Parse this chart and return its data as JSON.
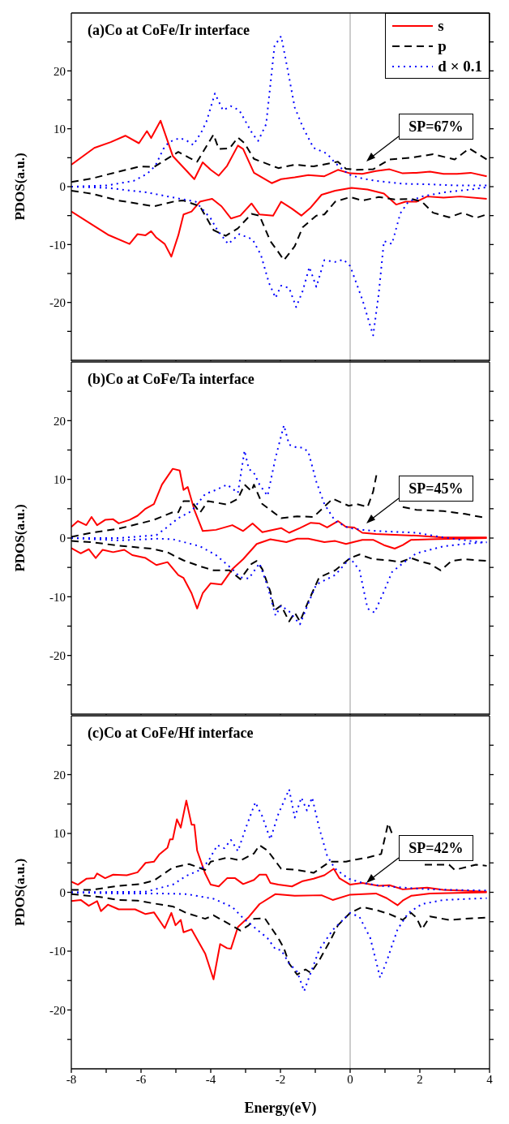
{
  "chart_data": [
    {
      "type": "line",
      "title": "(a)Co at CoFe/Ir interface",
      "ylabel": "PDOS(a.u.)",
      "xlim": [
        -8,
        4
      ],
      "ylim": [
        -30,
        30
      ],
      "xticks": [
        -8,
        {
          "value": -7,
          "label": null
        },
        -6,
        {
          "value": -5,
          "label": null
        },
        -4,
        {
          "value": -3,
          "label": null
        },
        -2,
        {
          "value": -1,
          "label": null
        },
        0,
        {
          "value": 1,
          "label": null
        },
        2,
        {
          "value": 3,
          "label": null
        },
        4
      ],
      "yticks": [
        {
          "value": -25,
          "label": null
        },
        -20,
        {
          "value": -15,
          "label": null
        },
        -10,
        {
          "value": -5,
          "label": null
        },
        0,
        {
          "value": 5,
          "label": null
        },
        10,
        {
          "value": 15,
          "label": null
        },
        20,
        {
          "value": 25,
          "label": null
        }
      ],
      "tick_labels": "y",
      "legend": "top right",
      "ref_lines": [
        {
          "axis": "x",
          "value": 0,
          "color": "#808080"
        }
      ],
      "annotations": [
        "SP=67%"
      ],
      "series": [
        {
          "name": "s",
          "color": "#ff0000",
          "line_style": "solid",
          "x": [
            -8,
            -7.34,
            -6.87,
            -6.45,
            -6.06,
            -5.83,
            -5.71,
            -5.44,
            -5.09,
            -4.47,
            -4.23,
            -4,
            -3.77,
            -3.53,
            -3.22,
            -3.07,
            -2.76,
            -2.25,
            -1.98,
            -1.59,
            -1.2,
            -0.74,
            -0.35,
            0,
            0.35,
            0.74,
            1.13,
            1.51,
            1.9,
            2.29,
            2.68,
            3.07,
            3.46,
            3.92
          ],
          "values": [
            3.8,
            6.7,
            7.7,
            8.8,
            7.5,
            9.6,
            8.4,
            11.4,
            5.3,
            1.3,
            4.2,
            2.9,
            1.9,
            3.6,
            7.1,
            6.5,
            2.4,
            0.6,
            1.3,
            1.6,
            2,
            1.8,
            2.9,
            2.3,
            2.2,
            2.7,
            3,
            2.3,
            2.4,
            2.6,
            2.2,
            2.2,
            2.4,
            1.8
          ]
        },
        {
          "color": "#ff0000",
          "line_style": "solid",
          "x": [
            -8,
            -7.42,
            -6.95,
            -6.33,
            -6.1,
            -5.87,
            -5.71,
            -5.56,
            -5.32,
            -5.13,
            -4.93,
            -4.78,
            -4.55,
            -4.31,
            -3.96,
            -3.69,
            -3.42,
            -3.15,
            -2.83,
            -2.6,
            -2.21,
            -1.98,
            -1.67,
            -1.4,
            -1.13,
            -0.82,
            -0.43,
            0.04,
            0.5,
            0.97,
            1.32,
            1.59,
            1.9,
            2.21,
            2.68,
            3.15,
            3.92
          ],
          "values": [
            -4.3,
            -6.5,
            -8.3,
            -9.9,
            -8.2,
            -8.4,
            -7.7,
            -8.8,
            -9.9,
            -12.1,
            -8.4,
            -4.8,
            -4.3,
            -2.6,
            -2.1,
            -3.4,
            -5.5,
            -5,
            -2.9,
            -4.8,
            -5,
            -2.6,
            -3.8,
            -5,
            -3.6,
            -1.4,
            -0.7,
            -0.2,
            -0.5,
            -1.2,
            -3.1,
            -2.6,
            -2.6,
            -1.7,
            -1.9,
            -1.7,
            -2.1
          ]
        },
        {
          "name": "p",
          "color": "#000000",
          "line_style": "dashed",
          "x": [
            -8,
            -7.42,
            -6.64,
            -6.02,
            -5.63,
            -4.93,
            -4.62,
            -4.39,
            -3.92,
            -3.77,
            -3.46,
            -3.22,
            -3.03,
            -2.76,
            -2.06,
            -1.59,
            -1.05,
            -0.35,
            -0.12,
            0.19,
            0.66,
            1.13,
            1.75,
            2.38,
            3,
            3.42,
            3.92
          ],
          "values": [
            0.8,
            1.4,
            2.6,
            3.5,
            3.4,
            6,
            5,
            4.3,
            9,
            6.5,
            6.6,
            8.5,
            7.5,
            4.8,
            3.2,
            3.8,
            3.5,
            4.3,
            3.1,
            2.9,
            3,
            4.7,
            5,
            5.6,
            4.7,
            6.6,
            4.7
          ]
        },
        {
          "color": "#000000",
          "line_style": "dashed",
          "x": [
            -8,
            -7.42,
            -6.64,
            -5.63,
            -5.01,
            -4.78,
            -4.31,
            -3.92,
            -3.57,
            -3.22,
            -2.83,
            -2.6,
            -2.29,
            -2.06,
            -1.9,
            -1.59,
            -1.36,
            -0.97,
            -0.74,
            -0.43,
            0,
            0.35,
            0.82,
            1.28,
            1.75,
            2.06,
            2.38,
            2.84,
            3.22,
            3.61,
            3.92
          ],
          "values": [
            -0.7,
            -1.2,
            -2.4,
            -3.4,
            -2.5,
            -2.4,
            -3.4,
            -7.5,
            -8.5,
            -7.2,
            -4.7,
            -5,
            -9.4,
            -11.3,
            -12.7,
            -10.3,
            -7,
            -5,
            -4.8,
            -2.6,
            -1.8,
            -2.4,
            -1.8,
            -2.2,
            -2.1,
            -2.6,
            -4.5,
            -5.3,
            -4.5,
            -5.4,
            -4.8
          ]
        },
        {
          "name": "d × 0.1",
          "color": "#0000ff",
          "line_style": "dotted",
          "x": [
            -8,
            -6.99,
            -6.21,
            -5.83,
            -5.59,
            -5.36,
            -5.2,
            -4.89,
            -4.7,
            -4.5,
            -4.27,
            -4.12,
            -3.88,
            -3.65,
            -3.42,
            -3.18,
            -2.8,
            -2.64,
            -2.41,
            -2.17,
            -1.98,
            -1.83,
            -1.59,
            -1.36,
            -1.05,
            -0.66,
            -0.43,
            -0.04,
            0.35,
            0.74,
            1.51,
            2.29,
            3.07,
            3.92
          ],
          "values": [
            0,
            0.2,
            1,
            2.2,
            3.6,
            6.5,
            7.7,
            8.4,
            8,
            7.2,
            9.4,
            11.3,
            16.1,
            13.2,
            13.9,
            13.2,
            9.1,
            7.9,
            10.8,
            24.3,
            26,
            21.4,
            13.7,
            10.3,
            6.7,
            5.7,
            4.1,
            2.1,
            1.4,
            1,
            0.5,
            0.4,
            0.2,
            0.2
          ]
        },
        {
          "color": "#0000ff",
          "line_style": "dotted",
          "x": [
            -8,
            -6.99,
            -5.83,
            -5.05,
            -4.43,
            -4,
            -3.81,
            -3.5,
            -3.18,
            -2.8,
            -2.56,
            -2.33,
            -2.14,
            -1.98,
            -1.75,
            -1.55,
            -1.36,
            -1.17,
            -0.97,
            -0.74,
            -0.43,
            -0.19,
            0,
            0.35,
            0.66,
            0.82,
            0.97,
            1.2,
            1.44,
            1.67,
            2.06,
            2.68,
            3.46,
            3.92
          ],
          "values": [
            0,
            -0.2,
            -1,
            -1.9,
            -2.6,
            -5.5,
            -7.5,
            -9.9,
            -8.2,
            -9.1,
            -11.8,
            -16.6,
            -19.2,
            -17.1,
            -17.5,
            -20.8,
            -18,
            -13.9,
            -17.3,
            -12.7,
            -13,
            -12.6,
            -13.7,
            -19.5,
            -25.7,
            -18.5,
            -9.4,
            -9.9,
            -4.6,
            -2.6,
            -1.7,
            -1,
            -0.5,
            -0.1
          ]
        }
      ]
    },
    {
      "type": "line",
      "title": "(b)Co at CoFe/Ta interface",
      "ylabel": "PDOS(a.u.)",
      "xlim": [
        -8,
        4
      ],
      "ylim": [
        -30,
        30
      ],
      "xticks": [
        -8,
        {
          "value": -7,
          "label": null
        },
        -6,
        {
          "value": -5,
          "label": null
        },
        -4,
        {
          "value": -3,
          "label": null
        },
        -2,
        {
          "value": -1,
          "label": null
        },
        0,
        {
          "value": 1,
          "label": null
        },
        2,
        {
          "value": 3,
          "label": null
        },
        4
      ],
      "yticks": [
        {
          "value": -25,
          "label": null
        },
        -20,
        {
          "value": -15,
          "label": null
        },
        -10,
        {
          "value": -5,
          "label": null
        },
        0,
        {
          "value": 5,
          "label": null
        },
        10,
        {
          "value": 15,
          "label": null
        },
        20,
        {
          "value": 25,
          "label": null
        }
      ],
      "tick_labels": "y",
      "ref_lines": [
        {
          "axis": "x",
          "value": 0,
          "color": "#808080"
        }
      ],
      "annotations": [
        "SP=45%"
      ],
      "series": [
        {
          "color": "#ff0000",
          "line_style": "solid",
          "x": [
            -8,
            -7.81,
            -7.57,
            -7.42,
            -7.26,
            -7.03,
            -6.8,
            -6.64,
            -6.33,
            -6.1,
            -5.87,
            -5.63,
            -5.4,
            -5.09,
            -4.89,
            -4.78,
            -4.66,
            -4.47,
            -4.23,
            -3.85,
            -3.38,
            -3.07,
            -2.8,
            -2.52,
            -1.98,
            -1.75,
            -1.44,
            -1.13,
            -0.89,
            -0.66,
            -0.35,
            -0.12,
            0.12,
            0.35,
            0.74,
            1.13,
            1.9,
            2.68,
            3.92
          ],
          "values": [
            1.9,
            2.9,
            2.2,
            3.6,
            2.2,
            3.1,
            3.2,
            2.5,
            3.1,
            3.8,
            5,
            5.8,
            9.1,
            11.8,
            11.5,
            8.2,
            8.7,
            4.8,
            1.2,
            1.4,
            2.2,
            1.2,
            2.5,
            1,
            1.7,
            0.9,
            1.7,
            2.6,
            2.5,
            1.8,
            2.9,
            1.9,
            1.8,
            0.9,
            0.7,
            0.6,
            0.4,
            0.1,
            0.1
          ]
        },
        {
          "color": "#ff0000",
          "line_style": "solid",
          "x": [
            -8,
            -7.73,
            -7.5,
            -7.3,
            -7.1,
            -6.8,
            -6.48,
            -6.25,
            -5.87,
            -5.56,
            -5.24,
            -4.93,
            -4.78,
            -4.55,
            -4.39,
            -4.23,
            -4,
            -3.69,
            -3.38,
            -3.07,
            -2.68,
            -2.29,
            -1.83,
            -1.52,
            -1.2,
            -0.74,
            -0.43,
            -0.12,
            0.35,
            0.66,
            0.97,
            1.28,
            1.51,
            1.75,
            2.29,
            3.07,
            3.92
          ],
          "values": [
            -1.7,
            -2.6,
            -1.9,
            -3.4,
            -2,
            -2.4,
            -2,
            -2.9,
            -3.4,
            -4.6,
            -4.1,
            -6.3,
            -6.8,
            -9.4,
            -12,
            -9.4,
            -7.7,
            -7.9,
            -5.3,
            -3.6,
            -1,
            -0.2,
            -0.7,
            -0.1,
            -0.1,
            -0.7,
            -0.5,
            -1,
            -0.3,
            -0.3,
            -1.2,
            -1.8,
            -1.2,
            -0.3,
            -0.2,
            -0.1,
            0
          ]
        },
        {
          "color": "#000000",
          "line_style": "dashed",
          "x": [
            -8,
            -7.42,
            -6.64,
            -6.02,
            -5.63,
            -5.09,
            -4.93,
            -4.78,
            -4.55,
            -4.31,
            -4.08,
            -3.53,
            -3.22,
            -3.03,
            -2.83,
            -2.76,
            -2.52,
            -1.98,
            -1.52,
            -1.05,
            -0.5,
            -0.04,
            0.19,
            0.5,
            0.66,
            0.78,
            0.97,
            1.13,
            1.51,
            1.9,
            2.68,
            3.3,
            3.92
          ],
          "values": [
            0.2,
            0.9,
            1.6,
            2.5,
            3.1,
            4.4,
            4.4,
            6.3,
            6.3,
            4.3,
            6.3,
            5.7,
            6.7,
            9.1,
            8,
            9.1,
            5.8,
            3.4,
            3.7,
            3.6,
            6.7,
            5.5,
            5.8,
            5.3,
            7.9,
            11.5,
            null,
            null,
            5.3,
            4.8,
            4.6,
            4.1,
            3.4
          ]
        },
        {
          "color": "#000000",
          "line_style": "dashed",
          "x": [
            -8,
            -7.42,
            -6.64,
            -5.71,
            -5.24,
            -5.09,
            -4.78,
            -4.31,
            -3.92,
            -3.46,
            -3.15,
            -2.83,
            -2.68,
            -2.52,
            -2.29,
            -2.17,
            -1.98,
            -1.75,
            -1.59,
            -1.44,
            -1.2,
            -0.89,
            -0.43,
            0,
            0.27,
            0.66,
            1.13,
            1.44,
            1.75,
            1.98,
            2.29,
            2.6,
            2.91,
            3.3,
            3.92
          ],
          "values": [
            -0.5,
            -0.7,
            -1.3,
            -1.8,
            -2.4,
            -2.9,
            -3.8,
            -4.8,
            -5.5,
            -5.5,
            -7,
            -4.4,
            -3.9,
            -5.3,
            -9.1,
            -12.3,
            -11.5,
            -14.2,
            -12.7,
            -14.2,
            -10.8,
            -6.7,
            -5.5,
            -3.4,
            -2.8,
            -3.6,
            -3.8,
            -4.1,
            -3.4,
            -3.9,
            -4.4,
            -5.5,
            -3.9,
            -3.6,
            -3.9
          ]
        },
        {
          "color": "#0000ff",
          "line_style": "dotted",
          "x": [
            -8,
            -6.64,
            -5.56,
            -5.24,
            -4.93,
            -4.55,
            -4.16,
            -3.85,
            -3.53,
            -3.22,
            -3.03,
            -2.91,
            -2.76,
            -2.6,
            -2.37,
            -2.14,
            -1.9,
            -1.75,
            -1.52,
            -1.36,
            -1.2,
            -0.97,
            -0.74,
            -0.43,
            -0.04,
            0.35,
            0.74,
            1.13,
            1.9,
            2.68,
            3.46,
            3.92
          ],
          "values": [
            0,
            0,
            0.5,
            1.9,
            3.4,
            4.6,
            7.5,
            8.2,
            9.1,
            7.7,
            14.9,
            11.8,
            11.1,
            9.1,
            7.2,
            13.7,
            19.2,
            15.9,
            15.4,
            15.4,
            14.7,
            9.6,
            5.8,
            2.9,
            1.7,
            1.4,
            1.2,
            1.1,
            0.9,
            0.1,
            -0.5,
            -0.8
          ]
        },
        {
          "color": "#0000ff",
          "line_style": "dotted",
          "x": [
            -8,
            -6.64,
            -5.48,
            -5.09,
            -4.31,
            -3.85,
            -3.38,
            -3.15,
            -2.91,
            -2.6,
            -2.37,
            -2.14,
            -1.98,
            -1.75,
            -1.44,
            -1.2,
            -0.97,
            -0.43,
            0,
            0.27,
            0.5,
            0.7,
            0.97,
            1.2,
            1.51,
            1.9,
            2.68,
            3.46,
            3.92
          ],
          "values": [
            0,
            -0.4,
            -0.1,
            -0.2,
            -1.4,
            -2.9,
            -5.3,
            -6.7,
            -6.9,
            -4.3,
            -8.2,
            -13.2,
            -11.5,
            -12.5,
            -14.7,
            -11.1,
            -7.9,
            -6.3,
            -3.4,
            -5.5,
            -12,
            -12.7,
            -9.1,
            -5.8,
            -4.3,
            -2.6,
            -1.4,
            -0.9,
            -0.7
          ]
        }
      ]
    },
    {
      "type": "line",
      "title": "(c)Co at CoFe/Hf interface",
      "xlabel": "Energy(eV)",
      "ylabel": "PDOS(a.u.)",
      "xlim": [
        -8,
        4
      ],
      "ylim": [
        -30,
        30
      ],
      "xticks": [
        -8,
        {
          "value": -7,
          "label": null
        },
        -6,
        {
          "value": -5,
          "label": null
        },
        -4,
        {
          "value": -3,
          "label": null
        },
        -2,
        {
          "value": -1,
          "label": null
        },
        0,
        {
          "value": 1,
          "label": null
        },
        2,
        {
          "value": 3,
          "label": null
        },
        4
      ],
      "yticks": [
        {
          "value": -25,
          "label": null
        },
        -20,
        {
          "value": -15,
          "label": null
        },
        -10,
        {
          "value": -5,
          "label": null
        },
        0,
        {
          "value": 5,
          "label": null
        },
        10,
        {
          "value": 15,
          "label": null
        },
        20,
        {
          "value": 25,
          "label": null
        }
      ],
      "ref_lines": [
        {
          "axis": "x",
          "value": 0,
          "color": "#808080"
        }
      ],
      "annotations": [
        "SP=42%"
      ],
      "series": [
        {
          "color": "#ff0000",
          "line_style": "solid",
          "x": [
            -8,
            -7.81,
            -7.57,
            -7.34,
            -7.26,
            -7.03,
            -6.8,
            -6.41,
            -6.1,
            -5.87,
            -5.63,
            -5.48,
            -5.24,
            -5.17,
            -5.09,
            -4.97,
            -4.86,
            -4.7,
            -4.55,
            -4.47,
            -4.39,
            -4.16,
            -4,
            -3.77,
            -3.53,
            -3.3,
            -3.07,
            -2.76,
            -2.6,
            -2.41,
            -2.29,
            -2.06,
            -1.67,
            -1.36,
            -1.05,
            -0.74,
            -0.47,
            -0.31,
            0,
            0.35,
            0.82,
            1.13,
            1.51,
            2.21,
            2.68,
            3.92
          ],
          "values": [
            1.8,
            1.3,
            2.3,
            2.4,
            3.2,
            2.4,
            3,
            2.9,
            3.4,
            5,
            5.2,
            6.4,
            7.6,
            9,
            9,
            12.4,
            11,
            15.6,
            11.5,
            11.5,
            7.1,
            3.2,
            1.3,
            1,
            2.4,
            2.4,
            1.4,
            2.1,
            3,
            3,
            1.6,
            1.3,
            1,
            1.9,
            2.3,
            2.9,
            4,
            2.4,
            1.3,
            1.6,
            1.1,
            1.2,
            0.5,
            0.8,
            0.4,
            0.1
          ]
        },
        {
          "color": "#ff0000",
          "line_style": "solid",
          "x": [
            -8,
            -7.73,
            -7.5,
            -7.26,
            -7.15,
            -6.95,
            -6.64,
            -6.17,
            -5.87,
            -5.63,
            -5.32,
            -5.13,
            -5.01,
            -4.86,
            -4.78,
            -4.55,
            -4.16,
            -3.92,
            -3.73,
            -3.53,
            -3.42,
            -3.22,
            -2.91,
            -2.6,
            -2.14,
            -1.59,
            -0.82,
            -0.5,
            0,
            0.74,
            1.05,
            1.36,
            1.51,
            1.75,
            2.29,
            3.07,
            3.92
          ],
          "values": [
            -1.5,
            -1.3,
            -2.3,
            -1.5,
            -3.2,
            -2.1,
            -2.9,
            -2.9,
            -3.7,
            -3.4,
            -6.1,
            -3.5,
            -5.6,
            -4.7,
            -6.8,
            -6.3,
            -10.4,
            -14.8,
            -8.8,
            -9.5,
            -9.6,
            -5.9,
            -4.2,
            -2,
            -0.3,
            -0.6,
            -0.5,
            -1.3,
            -0.4,
            -0.2,
            -1,
            -2.2,
            -1.4,
            -0.6,
            -0.2,
            -0.1,
            0
          ]
        },
        {
          "color": "#000000",
          "line_style": "dashed",
          "x": [
            -8,
            -7.42,
            -6.64,
            -6.02,
            -5.63,
            -5.09,
            -4.62,
            -4.16,
            -4,
            -3.53,
            -3.15,
            -2.76,
            -2.6,
            -2.37,
            -1.98,
            -1.52,
            -1.05,
            -0.58,
            -0.12,
            0.19,
            0.5,
            0.89,
            1.09,
            1.2,
            1.44,
            1.98,
            2.14,
            2.84,
            3,
            3.61,
            3.92
          ],
          "values": [
            0.4,
            0.4,
            1.1,
            1.4,
            2,
            4.2,
            4.8,
            3.8,
            5.2,
            5.9,
            5.4,
            6.6,
            8,
            7.1,
            4,
            3.8,
            3.3,
            5.2,
            5.2,
            5.6,
            5.9,
            6.5,
            11.7,
            10,
            null,
            null,
            4.7,
            4.7,
            3.8,
            4.7,
            4.5
          ]
        },
        {
          "color": "#000000",
          "line_style": "dashed",
          "x": [
            -8,
            -7.18,
            -6.64,
            -6.1,
            -5.63,
            -5.09,
            -4.7,
            -4.16,
            -3.92,
            -3.38,
            -3.15,
            -2.91,
            -2.76,
            -2.45,
            -2.06,
            -1.9,
            -1.75,
            -1.52,
            -1.28,
            -1.13,
            -0.89,
            -0.58,
            -0.35,
            0,
            0.35,
            0.74,
            1.13,
            1.51,
            1.75,
            1.9,
            2.06,
            2.29,
            2.84,
            3.3,
            3.92
          ],
          "values": [
            -0.3,
            -0.8,
            -1.3,
            -1.4,
            -1.9,
            -2.4,
            -3.5,
            -4.5,
            -3.9,
            -5.7,
            -6.5,
            -5.6,
            -4.5,
            -4.4,
            -7.8,
            -9.5,
            -12.1,
            -14,
            -13.1,
            -13.7,
            -11.6,
            -8.3,
            -5.6,
            -3.5,
            -2.5,
            -3,
            -3.7,
            -4.7,
            -3.5,
            -4.3,
            -6.3,
            -4.1,
            -4.7,
            -4.5,
            -4.3
          ]
        },
        {
          "color": "#0000ff",
          "line_style": "dotted",
          "x": [
            -8,
            -5.87,
            -5.09,
            -4.7,
            -4.31,
            -4.08,
            -3.81,
            -3.61,
            -3.42,
            -3.22,
            -2.99,
            -2.72,
            -2.52,
            -2.29,
            -2.06,
            -1.75,
            -1.59,
            -1.4,
            -1.24,
            -1.09,
            -0.89,
            -0.66,
            -0.43,
            -0.04,
            0.35,
            0.89,
            1.51,
            2.29,
            3.07,
            3.92
          ],
          "values": [
            0,
            0.1,
            1.3,
            2.8,
            3.8,
            5.2,
            8,
            7.5,
            8.9,
            7,
            11,
            15.3,
            12.9,
            9,
            13.3,
            17.5,
            12.7,
            16.1,
            13.9,
            16.1,
            11,
            6.2,
            4,
            2.3,
            1.6,
            1.1,
            0.8,
            0.5,
            0.4,
            0.3
          ]
        },
        {
          "color": "#0000ff",
          "line_style": "dotted",
          "x": [
            -8,
            -6.64,
            -5.48,
            -4.7,
            -3.92,
            -3.38,
            -3.07,
            -2.76,
            -2.37,
            -2.14,
            -1.98,
            -1.75,
            -1.52,
            -1.32,
            -1.2,
            -0.89,
            -0.5,
            0,
            0.27,
            0.58,
            0.86,
            1.05,
            1.36,
            1.67,
            2.06,
            2.68,
            3.46,
            3.92
          ],
          "values": [
            0,
            -0.2,
            -0.2,
            -0.3,
            -1.1,
            -2.5,
            -4.4,
            -5.9,
            -7.8,
            -9.7,
            -9.8,
            -12.1,
            -13.5,
            -16.8,
            -14.8,
            -9.8,
            -6.4,
            -3.5,
            -4.2,
            -7.8,
            -14.5,
            -11.7,
            -6.3,
            -3.5,
            -2,
            -1.3,
            -1.1,
            -1
          ]
        }
      ]
    }
  ]
}
